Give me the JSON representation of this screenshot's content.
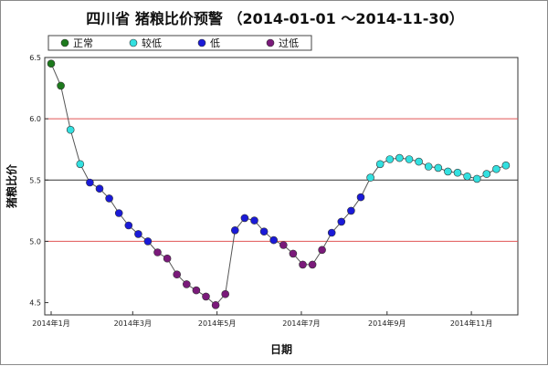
{
  "chart_data": {
    "type": "scatter",
    "title": "四川省 猪粮比价预警 （2014-01-01 ～2014-11-30）",
    "xlabel": "日期",
    "ylabel": "猪粮比价",
    "ylim": [
      4.4,
      6.5
    ],
    "xlim_days": [
      0,
      333
    ],
    "y_ticks": [
      "4.5",
      "5.0",
      "5.5",
      "6.0",
      "6.5"
    ],
    "x_ticks": [
      {
        "label": "2014年1月",
        "day": 0
      },
      {
        "label": "2014年3月",
        "day": 59
      },
      {
        "label": "2014年5月",
        "day": 120
      },
      {
        "label": "2014年7月",
        "day": 181
      },
      {
        "label": "2014年9月",
        "day": 243
      },
      {
        "label": "2014年11月",
        "day": 304
      }
    ],
    "reference_lines": [
      {
        "y": 6.0,
        "color": "#e05555"
      },
      {
        "y": 5.5,
        "color": "#333333"
      },
      {
        "y": 5.0,
        "color": "#e05555"
      }
    ],
    "legend_position": "top",
    "categories": [
      {
        "key": "normal",
        "name": "正常",
        "color": "#1d7a1d"
      },
      {
        "key": "low",
        "name": "较低",
        "color": "#33e0e0"
      },
      {
        "key": "lower",
        "name": "低",
        "color": "#1a1ad8"
      },
      {
        "key": "too_low",
        "name": "过低",
        "color": "#7a1a7a"
      }
    ],
    "points": [
      {
        "date": "2014-01-01",
        "y": 6.45,
        "cat": "normal"
      },
      {
        "date": "2014-01-08",
        "y": 6.27,
        "cat": "normal"
      },
      {
        "date": "2014-01-15",
        "y": 5.91,
        "cat": "low"
      },
      {
        "date": "2014-01-22",
        "y": 5.63,
        "cat": "low"
      },
      {
        "date": "2014-01-29",
        "y": 5.48,
        "cat": "lower"
      },
      {
        "date": "2014-02-05",
        "y": 5.43,
        "cat": "lower"
      },
      {
        "date": "2014-02-12",
        "y": 5.35,
        "cat": "lower"
      },
      {
        "date": "2014-02-19",
        "y": 5.23,
        "cat": "lower"
      },
      {
        "date": "2014-02-26",
        "y": 5.13,
        "cat": "lower"
      },
      {
        "date": "2014-03-05",
        "y": 5.06,
        "cat": "lower"
      },
      {
        "date": "2014-03-12",
        "y": 5.0,
        "cat": "lower"
      },
      {
        "date": "2014-03-19",
        "y": 4.91,
        "cat": "too_low"
      },
      {
        "date": "2014-03-26",
        "y": 4.86,
        "cat": "too_low"
      },
      {
        "date": "2014-04-02",
        "y": 4.73,
        "cat": "too_low"
      },
      {
        "date": "2014-04-09",
        "y": 4.65,
        "cat": "too_low"
      },
      {
        "date": "2014-04-16",
        "y": 4.6,
        "cat": "too_low"
      },
      {
        "date": "2014-04-23",
        "y": 4.55,
        "cat": "too_low"
      },
      {
        "date": "2014-04-30",
        "y": 4.48,
        "cat": "too_low"
      },
      {
        "date": "2014-05-07",
        "y": 4.57,
        "cat": "too_low"
      },
      {
        "date": "2014-05-14",
        "y": 5.09,
        "cat": "lower"
      },
      {
        "date": "2014-05-21",
        "y": 5.19,
        "cat": "lower"
      },
      {
        "date": "2014-05-28",
        "y": 5.17,
        "cat": "lower"
      },
      {
        "date": "2014-06-04",
        "y": 5.08,
        "cat": "lower"
      },
      {
        "date": "2014-06-11",
        "y": 5.01,
        "cat": "lower"
      },
      {
        "date": "2014-06-18",
        "y": 4.97,
        "cat": "too_low"
      },
      {
        "date": "2014-06-25",
        "y": 4.9,
        "cat": "too_low"
      },
      {
        "date": "2014-07-02",
        "y": 4.81,
        "cat": "too_low"
      },
      {
        "date": "2014-07-09",
        "y": 4.81,
        "cat": "too_low"
      },
      {
        "date": "2014-07-16",
        "y": 4.93,
        "cat": "too_low"
      },
      {
        "date": "2014-07-23",
        "y": 5.07,
        "cat": "lower"
      },
      {
        "date": "2014-07-30",
        "y": 5.16,
        "cat": "lower"
      },
      {
        "date": "2014-08-06",
        "y": 5.25,
        "cat": "lower"
      },
      {
        "date": "2014-08-13",
        "y": 5.36,
        "cat": "lower"
      },
      {
        "date": "2014-08-20",
        "y": 5.52,
        "cat": "low"
      },
      {
        "date": "2014-08-27",
        "y": 5.63,
        "cat": "low"
      },
      {
        "date": "2014-09-03",
        "y": 5.67,
        "cat": "low"
      },
      {
        "date": "2014-09-10",
        "y": 5.68,
        "cat": "low"
      },
      {
        "date": "2014-09-17",
        "y": 5.67,
        "cat": "low"
      },
      {
        "date": "2014-09-24",
        "y": 5.65,
        "cat": "low"
      },
      {
        "date": "2014-10-01",
        "y": 5.61,
        "cat": "low"
      },
      {
        "date": "2014-10-08",
        "y": 5.6,
        "cat": "low"
      },
      {
        "date": "2014-10-15",
        "y": 5.57,
        "cat": "low"
      },
      {
        "date": "2014-10-22",
        "y": 5.56,
        "cat": "low"
      },
      {
        "date": "2014-10-29",
        "y": 5.53,
        "cat": "low"
      },
      {
        "date": "2014-11-05",
        "y": 5.51,
        "cat": "low"
      },
      {
        "date": "2014-11-12",
        "y": 5.55,
        "cat": "low"
      },
      {
        "date": "2014-11-19",
        "y": 5.59,
        "cat": "low"
      },
      {
        "date": "2014-11-26",
        "y": 5.62,
        "cat": "low"
      }
    ]
  }
}
